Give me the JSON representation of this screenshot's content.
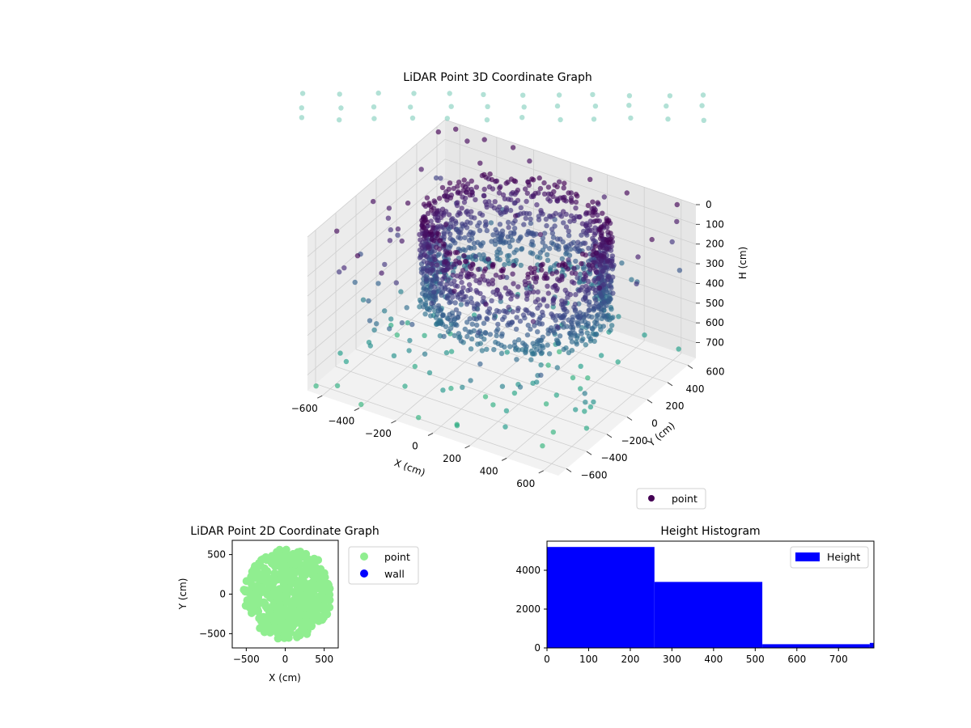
{
  "chart_data": [
    {
      "type": "scatter",
      "projection": "3d",
      "title": "LiDAR Point 3D Coordinate Graph",
      "xlabel": "X (cm)",
      "ylabel": "Y (cm)",
      "zlabel": "H (cm)",
      "xlim": [
        -680,
        680
      ],
      "ylim": [
        -680,
        680
      ],
      "zlim": [
        0,
        780
      ],
      "z_inverted": true,
      "xticks": [
        -600,
        -400,
        -200,
        0,
        200,
        400,
        600
      ],
      "yticks": [
        -600,
        -400,
        -200,
        0,
        200,
        400,
        600
      ],
      "zticks": [
        0,
        100,
        200,
        300,
        400,
        500,
        600,
        700
      ],
      "grid": true,
      "colormap": "viridis",
      "legend": {
        "placement": "lower-right",
        "entries": [
          {
            "label": "point",
            "color": "#440154"
          }
        ]
      },
      "series": [
        {
          "name": "point",
          "description": "dense ring of points (wall of a roughly circular room) plus scattered outliers",
          "ring": {
            "center": [
              60,
              40
            ],
            "radius": 430,
            "height_range": [
              0,
              460
            ]
          },
          "outliers_sample": [
            [
              -650,
              560,
              0
            ],
            [
              -600,
              300,
              60
            ],
            [
              -560,
              -100,
              120
            ],
            [
              -620,
              -500,
              30
            ],
            [
              -300,
              -640,
              80
            ],
            [
              100,
              -650,
              40
            ],
            [
              500,
              -600,
              90
            ],
            [
              640,
              -200,
              50
            ],
            [
              650,
              300,
              20
            ],
            [
              620,
              600,
              70
            ],
            [
              200,
              650,
              100
            ],
            [
              -200,
              640,
              40
            ],
            [
              -450,
              100,
              350
            ],
            [
              -350,
              -300,
              420
            ],
            [
              400,
              -350,
              380
            ],
            [
              450,
              250,
              330
            ],
            [
              -500,
              -400,
              600
            ],
            [
              -250,
              -500,
              700
            ],
            [
              300,
              -500,
              650
            ],
            [
              -600,
              0,
              720
            ],
            [
              -200,
              300,
              680
            ],
            [
              500,
              500,
              640
            ],
            [
              -650,
              -650,
              760
            ],
            [
              -550,
              -620,
              740
            ],
            [
              -400,
              -660,
              770
            ],
            [
              -100,
              -640,
              750
            ],
            [
              150,
              600,
              5
            ],
            [
              350,
              600,
              10
            ],
            [
              -600,
              640,
              5
            ],
            [
              600,
              640,
              8
            ],
            [
              -450,
              650,
              15
            ],
            [
              -300,
              660,
              12
            ]
          ]
        }
      ]
    },
    {
      "type": "scatter",
      "title": "LiDAR Point 2D Coordinate Graph",
      "xlabel": "X (cm)",
      "ylabel": "Y (cm)",
      "xlim": [
        -680,
        680
      ],
      "ylim": [
        -680,
        680
      ],
      "xticks": [
        -500,
        0,
        500
      ],
      "yticks": [
        -500,
        0,
        500
      ],
      "legend": {
        "placement": "outside-right",
        "entries": [
          {
            "label": "point",
            "color": "#90ee90"
          },
          {
            "label": "wall",
            "color": "#0000ff"
          }
        ]
      },
      "series": [
        {
          "name": "point",
          "color": "#90ee90",
          "description": "filled disc of points covering most of the area",
          "disc": {
            "center": [
              30,
              0
            ],
            "radius": 560
          }
        },
        {
          "name": "wall",
          "color": "#0000ff",
          "points": []
        }
      ]
    },
    {
      "type": "bar",
      "title": "Height Histogram",
      "xlabel": "",
      "ylabel": "",
      "xlim": [
        0,
        785
      ],
      "ylim": [
        0,
        5500
      ],
      "xticks": [
        0,
        100,
        200,
        300,
        400,
        500,
        600,
        700
      ],
      "yticks": [
        0,
        2000,
        4000
      ],
      "legend": {
        "placement": "upper-right",
        "entries": [
          {
            "label": "Height",
            "color": "#0000ff"
          }
        ]
      },
      "bins": [
        {
          "x0": 0,
          "x1": 258,
          "count": 5200
        },
        {
          "x0": 258,
          "x1": 517,
          "count": 3400
        },
        {
          "x0": 517,
          "x1": 775,
          "count": 190
        },
        {
          "x0": 775,
          "x1": 785,
          "count": 260
        }
      ],
      "color": "#0000ff"
    }
  ]
}
